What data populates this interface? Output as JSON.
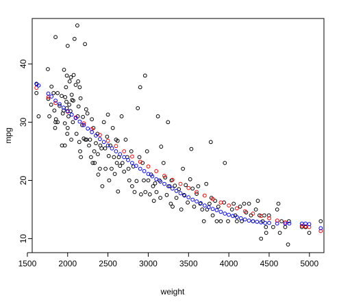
{
  "chart_data": {
    "type": "scatter",
    "title": "",
    "xlabel": "weight",
    "ylabel": "mpg",
    "xlim": [
      1560,
      5180
    ],
    "ylim": [
      7.6,
      47.8
    ],
    "x_ticks": [
      1500,
      2000,
      2500,
      3000,
      3500,
      4000,
      4500,
      5000
    ],
    "y_ticks": [
      10,
      20,
      30,
      40
    ],
    "grid": false,
    "legend": "none",
    "colors": {
      "observed": "#000000",
      "fitted": "#ff0000",
      "predicted": "#0000ff"
    },
    "series": [
      {
        "role": "observed",
        "points": [
          [
            1613,
            35.0
          ],
          [
            1615,
            36.5
          ],
          [
            1640,
            31.0
          ],
          [
            1755,
            39.1
          ],
          [
            1760,
            34.0
          ],
          [
            1773,
            31.0
          ],
          [
            1795,
            33.0
          ],
          [
            1800,
            36.1
          ],
          [
            1825,
            35.0
          ],
          [
            1835,
            32.0
          ],
          [
            1845,
            29.0
          ],
          [
            1850,
            30.0
          ],
          [
            1850,
            44.6
          ],
          [
            1855,
            30.5
          ],
          [
            1875,
            35.0
          ],
          [
            1875,
            30.0
          ],
          [
            1900,
            32.8
          ],
          [
            1925,
            34.5
          ],
          [
            1930,
            26.0
          ],
          [
            1940,
            31.5
          ],
          [
            1950,
            32.0
          ],
          [
            1955,
            39.0
          ],
          [
            1965,
            29.8
          ],
          [
            1965,
            26.0
          ],
          [
            1970,
            34.3
          ],
          [
            1980,
            36.0
          ],
          [
            1985,
            33.5
          ],
          [
            1990,
            32.4
          ],
          [
            1990,
            38.0
          ],
          [
            1995,
            28.0
          ],
          [
            2000,
            29.0
          ],
          [
            2000,
            43.1
          ],
          [
            2010,
            31.0
          ],
          [
            2020,
            33.0
          ],
          [
            2025,
            37.0
          ],
          [
            2035,
            31.9
          ],
          [
            2040,
            37.7
          ],
          [
            2045,
            27.0
          ],
          [
            2050,
            34.7
          ],
          [
            2055,
            33.8
          ],
          [
            2065,
            30.0
          ],
          [
            2070,
            33.7
          ],
          [
            2075,
            38.1
          ],
          [
            2085,
            44.3
          ],
          [
            2100,
            36.4
          ],
          [
            2110,
            28.0
          ],
          [
            2120,
            46.6
          ],
          [
            2125,
            31.0
          ],
          [
            2130,
            37.0
          ],
          [
            2135,
            32.7
          ],
          [
            2145,
            26.6
          ],
          [
            2150,
            36.0
          ],
          [
            2155,
            25.0
          ],
          [
            2160,
            34.1
          ],
          [
            2164,
            24.0
          ],
          [
            2180,
            29.5
          ],
          [
            2190,
            30.9
          ],
          [
            2200,
            27.2
          ],
          [
            2215,
            43.4
          ],
          [
            2220,
            27.0
          ],
          [
            2230,
            32.2
          ],
          [
            2234,
            27.0
          ],
          [
            2245,
            31.5
          ],
          [
            2265,
            26.0
          ],
          [
            2278,
            27.0
          ],
          [
            2290,
            24.0
          ],
          [
            2300,
            30.5
          ],
          [
            2310,
            23.0
          ],
          [
            2320,
            29.0
          ],
          [
            2330,
            25.0
          ],
          [
            2335,
            23.0
          ],
          [
            2350,
            26.4
          ],
          [
            2370,
            28.0
          ],
          [
            2375,
            24.5
          ],
          [
            2380,
            21.0
          ],
          [
            2400,
            22.0
          ],
          [
            2405,
            26.0
          ],
          [
            2420,
            25.5
          ],
          [
            2430,
            19.0
          ],
          [
            2450,
            30.0
          ],
          [
            2465,
            25.5
          ],
          [
            2470,
            22.0
          ],
          [
            2490,
            27.5
          ],
          [
            2500,
            31.3
          ],
          [
            2510,
            24.2
          ],
          [
            2515,
            20.0
          ],
          [
            2530,
            26.0
          ],
          [
            2545,
            22.0
          ],
          [
            2560,
            29.0
          ],
          [
            2575,
            24.0
          ],
          [
            2585,
            21.1
          ],
          [
            2600,
            27.0
          ],
          [
            2610,
            23.0
          ],
          [
            2620,
            26.8
          ],
          [
            2625,
            18.1
          ],
          [
            2635,
            24.0
          ],
          [
            2650,
            22.5
          ],
          [
            2670,
            31.0
          ],
          [
            2680,
            23.0
          ],
          [
            2700,
            21.5
          ],
          [
            2720,
            27.0
          ],
          [
            2740,
            24.0
          ],
          [
            2755,
            22.0
          ],
          [
            2765,
            20.0
          ],
          [
            2790,
            25.0
          ],
          [
            2800,
            19.0
          ],
          [
            2815,
            22.4
          ],
          [
            2830,
            18.0
          ],
          [
            2855,
            19.9
          ],
          [
            2870,
            32.4
          ],
          [
            2890,
            24.0
          ],
          [
            2900,
            36.0
          ],
          [
            2910,
            17.6
          ],
          [
            2930,
            23.0
          ],
          [
            2945,
            20.0
          ],
          [
            2960,
            38.0
          ],
          [
            2965,
            18.0
          ],
          [
            2985,
            25.0
          ],
          [
            3000,
            20.0
          ],
          [
            3020,
            17.6
          ],
          [
            3035,
            21.0
          ],
          [
            3060,
            19.0
          ],
          [
            3070,
            16.5
          ],
          [
            3085,
            19.5
          ],
          [
            3102,
            18.0
          ],
          [
            3120,
            31.0
          ],
          [
            3140,
            20.0
          ],
          [
            3150,
            17.0
          ],
          [
            3160,
            25.8
          ],
          [
            3190,
            23.0
          ],
          [
            3210,
            20.5
          ],
          [
            3230,
            17.5
          ],
          [
            3245,
            30.0
          ],
          [
            3265,
            19.0
          ],
          [
            3280,
            16.0
          ],
          [
            3288,
            20.0
          ],
          [
            3302,
            15.5
          ],
          [
            3330,
            19.1
          ],
          [
            3350,
            17.0
          ],
          [
            3380,
            18.5
          ],
          [
            3410,
            15.0
          ],
          [
            3430,
            22.0
          ],
          [
            3445,
            17.5
          ],
          [
            3465,
            19.2
          ],
          [
            3490,
            16.2
          ],
          [
            3520,
            20.2
          ],
          [
            3535,
            25.4
          ],
          [
            3550,
            18.6
          ],
          [
            3570,
            15.5
          ],
          [
            3600,
            17.7
          ],
          [
            3620,
            19.0
          ],
          [
            3645,
            16.0
          ],
          [
            3670,
            15.0
          ],
          [
            3690,
            13.0
          ],
          [
            3720,
            19.4
          ],
          [
            3730,
            15.0
          ],
          [
            3760,
            16.0
          ],
          [
            3776,
            26.6
          ],
          [
            3785,
            17.0
          ],
          [
            3800,
            14.0
          ],
          [
            3830,
            16.5
          ],
          [
            3850,
            13.0
          ],
          [
            3870,
            15.5
          ],
          [
            3900,
            13.0
          ],
          [
            3940,
            16.2
          ],
          [
            3950,
            23.0
          ],
          [
            3990,
            13.0
          ],
          [
            4040,
            15.0
          ],
          [
            4060,
            16.0
          ],
          [
            4080,
            14.0
          ],
          [
            4100,
            13.0
          ],
          [
            4140,
            15.5
          ],
          [
            4160,
            13.0
          ],
          [
            4190,
            16.0
          ],
          [
            4215,
            14.5
          ],
          [
            4250,
            16.0
          ],
          [
            4275,
            14.0
          ],
          [
            4300,
            13.0
          ],
          [
            4335,
            15.0
          ],
          [
            4360,
            16.5
          ],
          [
            4380,
            14.0
          ],
          [
            4400,
            10.0
          ],
          [
            4420,
            13.0
          ],
          [
            4440,
            14.0
          ],
          [
            4460,
            12.0
          ],
          [
            4464,
            11.0
          ],
          [
            4498,
            14.0
          ],
          [
            4550,
            12.0
          ],
          [
            4600,
            15.0
          ],
          [
            4615,
            16.0
          ],
          [
            4633,
            11.0
          ],
          [
            4654,
            13.0
          ],
          [
            4700,
            12.0
          ],
          [
            4735,
            9.0
          ],
          [
            4746,
            13.0
          ],
          [
            4906,
            12.0
          ],
          [
            4951,
            12.0
          ],
          [
            4955,
            12.0
          ],
          [
            4997,
            11.0
          ],
          [
            5140,
            13.0
          ]
        ]
      },
      {
        "role": "fitted",
        "points": [
          [
            1613,
            35.9
          ],
          [
            1760,
            34.3
          ],
          [
            1850,
            33.3
          ],
          [
            2000,
            31.8
          ],
          [
            2100,
            30.8
          ],
          [
            2200,
            29.8
          ],
          [
            2300,
            28.8
          ],
          [
            2400,
            27.8
          ],
          [
            2500,
            26.8
          ],
          [
            2600,
            25.9
          ],
          [
            2700,
            25.0
          ],
          [
            2800,
            24.1
          ],
          [
            2900,
            23.2
          ],
          [
            3000,
            22.4
          ],
          [
            3100,
            21.6
          ],
          [
            3200,
            20.8
          ],
          [
            3300,
            20.1
          ],
          [
            3400,
            19.4
          ],
          [
            3500,
            18.7
          ],
          [
            3600,
            18.0
          ],
          [
            3700,
            17.4
          ],
          [
            3800,
            16.8
          ],
          [
            3900,
            16.2
          ],
          [
            4000,
            15.7
          ],
          [
            4100,
            15.2
          ],
          [
            4200,
            14.7
          ],
          [
            4300,
            14.3
          ],
          [
            4400,
            13.9
          ],
          [
            4500,
            13.5
          ],
          [
            4600,
            13.1
          ],
          [
            4700,
            12.8
          ],
          [
            4906,
            12.2
          ],
          [
            4951,
            12.1
          ],
          [
            4997,
            12.0
          ],
          [
            5140,
            11.3
          ]
        ]
      },
      {
        "role": "predicted",
        "points": [
          [
            1613,
            36.6
          ],
          [
            1640,
            36.3
          ],
          [
            1760,
            34.9
          ],
          [
            1800,
            34.4
          ],
          [
            1850,
            33.7
          ],
          [
            1900,
            33.1
          ],
          [
            1950,
            32.5
          ],
          [
            2000,
            31.9
          ],
          [
            2050,
            31.3
          ],
          [
            2100,
            30.7
          ],
          [
            2150,
            30.1
          ],
          [
            2200,
            29.5
          ],
          [
            2250,
            28.9
          ],
          [
            2300,
            28.3
          ],
          [
            2350,
            27.7
          ],
          [
            2400,
            27.1
          ],
          [
            2450,
            26.6
          ],
          [
            2500,
            26.0
          ],
          [
            2550,
            25.5
          ],
          [
            2600,
            25.0
          ],
          [
            2650,
            24.5
          ],
          [
            2700,
            24.0
          ],
          [
            2750,
            23.5
          ],
          [
            2800,
            23.0
          ],
          [
            2850,
            22.5
          ],
          [
            2900,
            22.0
          ],
          [
            2950,
            21.6
          ],
          [
            3000,
            21.1
          ],
          [
            3050,
            20.7
          ],
          [
            3100,
            20.2
          ],
          [
            3150,
            19.8
          ],
          [
            3200,
            19.4
          ],
          [
            3250,
            19.0
          ],
          [
            3300,
            18.6
          ],
          [
            3350,
            18.2
          ],
          [
            3400,
            17.8
          ],
          [
            3450,
            17.4
          ],
          [
            3500,
            17.1
          ],
          [
            3550,
            16.7
          ],
          [
            3600,
            16.4
          ],
          [
            3650,
            16.1
          ],
          [
            3700,
            15.7
          ],
          [
            3750,
            15.4
          ],
          [
            3800,
            15.1
          ],
          [
            3850,
            14.9
          ],
          [
            3900,
            14.6
          ],
          [
            3950,
            14.3
          ],
          [
            4000,
            14.1
          ],
          [
            4050,
            13.9
          ],
          [
            4100,
            13.7
          ],
          [
            4150,
            13.5
          ],
          [
            4200,
            13.3
          ],
          [
            4250,
            13.1
          ],
          [
            4300,
            13.0
          ],
          [
            4350,
            12.9
          ],
          [
            4400,
            12.8
          ],
          [
            4450,
            12.7
          ],
          [
            4500,
            12.7
          ],
          [
            4600,
            12.6
          ],
          [
            4700,
            12.6
          ],
          [
            4750,
            12.6
          ],
          [
            4906,
            12.6
          ],
          [
            4951,
            12.6
          ],
          [
            4997,
            12.5
          ],
          [
            5140,
            11.8
          ]
        ]
      }
    ]
  }
}
